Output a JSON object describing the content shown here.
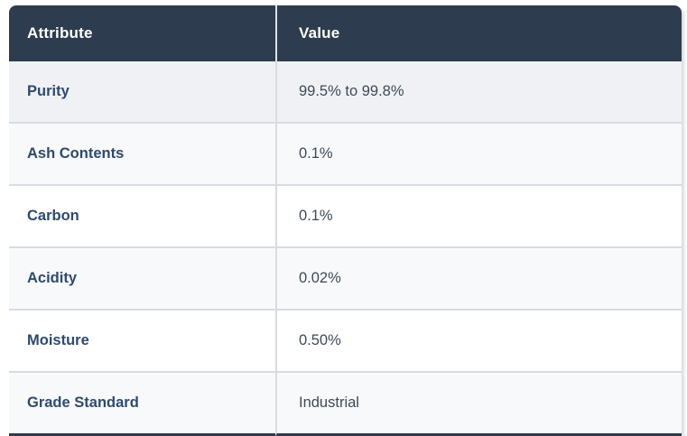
{
  "table": {
    "headers": {
      "attribute": "Attribute",
      "value": "Value"
    },
    "rows": [
      {
        "attribute": "Purity",
        "value": "99.5% to 99.8%"
      },
      {
        "attribute": "Ash Contents",
        "value": "0.1%"
      },
      {
        "attribute": "Carbon",
        "value": "0.1%"
      },
      {
        "attribute": "Acidity",
        "value": "0.02%"
      },
      {
        "attribute": "Moisture",
        "value": "0.50%"
      },
      {
        "attribute": "Grade Standard",
        "value": "Industrial"
      }
    ]
  },
  "colors": {
    "header_background": "#2d3c4e",
    "header_text": "#ffffff",
    "row_highlight": "#eff1f4",
    "row_stripe": "#f8f9fa",
    "row_plain": "#ffffff",
    "row_border": "#d8dce1",
    "attribute_text": "#2e4a6e",
    "value_text": "#3f4a57",
    "bottom_bar": "#2d3c4e"
  }
}
